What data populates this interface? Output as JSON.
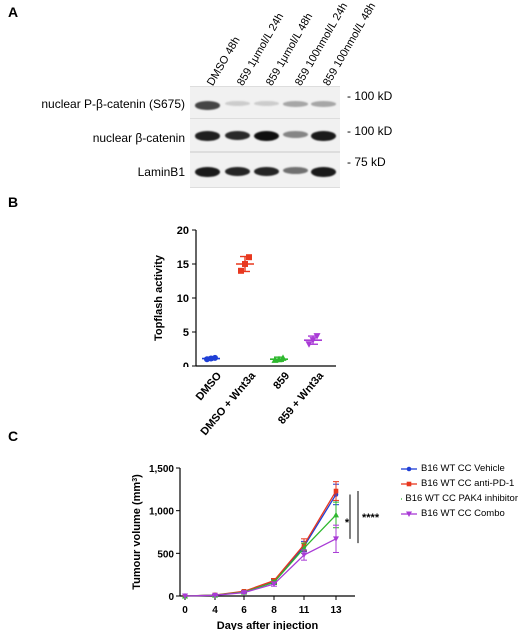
{
  "panelA": {
    "letter": "A",
    "lane_labels": [
      "DMSO 48h",
      "859 1μmol/L 24h",
      "859 1μmol/L 48h",
      "859 100nmol/L 24h",
      "859 100nmol/L 48h"
    ],
    "blots": [
      {
        "label": "nuclear P-β-catenin (S675)",
        "marker": "- 100 kD",
        "band_intensity": [
          0.75,
          0.12,
          0.12,
          0.3,
          0.3
        ]
      },
      {
        "label": "nuclear β-catenin",
        "marker": "- 100 kD",
        "band_intensity": [
          0.92,
          0.88,
          1.0,
          0.45,
          0.95
        ]
      },
      {
        "label": "LaminB1",
        "marker": "- 75 kD",
        "band_intensity": [
          0.95,
          0.9,
          0.9,
          0.55,
          0.95
        ]
      }
    ]
  },
  "panelB": {
    "letter": "B",
    "chart_data": {
      "type": "scatter",
      "ylabel": "Topflash activity",
      "ylim": [
        0,
        20
      ],
      "yticks": [
        0,
        5,
        10,
        15,
        20
      ],
      "categories": [
        "DMSO",
        "DMSO + Wnt3a",
        "859",
        "859 + Wnt3a"
      ],
      "colors": [
        "#1f3fd6",
        "#e8381f",
        "#2eb82e",
        "#a93bd6"
      ],
      "points": [
        [
          1.0,
          1.1,
          1.2
        ],
        [
          14.0,
          15.0,
          16.0
        ],
        [
          0.9,
          1.0,
          1.2
        ],
        [
          3.2,
          3.8,
          4.4
        ]
      ],
      "means": [
        1.1,
        15.0,
        1.0,
        3.8
      ],
      "sd": [
        0.2,
        1.1,
        0.3,
        0.6
      ]
    }
  },
  "panelC": {
    "letter": "C",
    "chart_data": {
      "type": "line",
      "xlabel": "Days after injection",
      "ylabel_main": "Tumour volume (mm",
      "ylabel_sup": "3",
      "ylabel_end": ")",
      "x": [
        0,
        4,
        6,
        8,
        11,
        13
      ],
      "ylim": [
        0,
        1500
      ],
      "yticks": [
        "0",
        "500",
        "1,000",
        "1,500"
      ],
      "yticks_values": [
        0,
        500,
        1000,
        1500
      ],
      "series": [
        {
          "name": "B16 WT CC Vehicle",
          "color": "#1f3fd6",
          "marker": "circle",
          "values": [
            0,
            10,
            50,
            170,
            580,
            1190
          ],
          "err": [
            0,
            5,
            10,
            25,
            60,
            120
          ]
        },
        {
          "name": "B16 WT CC anti-PD-1",
          "color": "#e8381f",
          "marker": "square",
          "values": [
            0,
            12,
            55,
            180,
            600,
            1230
          ],
          "err": [
            0,
            5,
            10,
            25,
            70,
            110
          ]
        },
        {
          "name": "B16 WT CC PAK4 inhibitor",
          "color": "#2eb82e",
          "marker": "triangle",
          "values": [
            0,
            10,
            45,
            160,
            560,
            950
          ],
          "err": [
            0,
            5,
            10,
            25,
            60,
            150
          ]
        },
        {
          "name": "B16 WT CC Combo",
          "color": "#a93bd6",
          "marker": "triangle-down",
          "values": [
            0,
            8,
            40,
            140,
            480,
            670
          ],
          "err": [
            0,
            5,
            10,
            25,
            60,
            160
          ]
        }
      ],
      "significance": [
        {
          "label": "*"
        },
        {
          "label": "****"
        }
      ]
    }
  }
}
